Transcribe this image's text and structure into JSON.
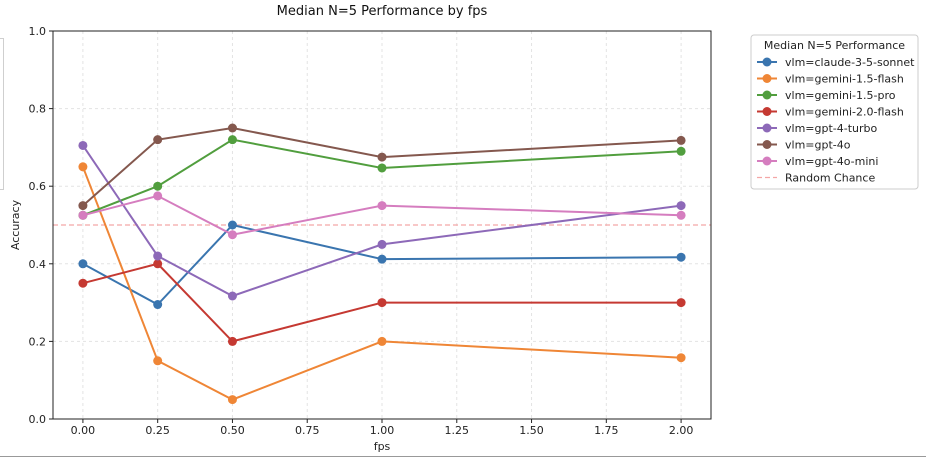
{
  "chart_data": {
    "type": "line",
    "title": "Median N=5 Performance by fps",
    "xlabel": "fps",
    "ylabel": "Accuracy",
    "xlim": [
      -0.1,
      2.1
    ],
    "ylim": [
      0.0,
      1.0
    ],
    "xticks": [
      0.0,
      0.25,
      0.5,
      0.75,
      1.0,
      1.25,
      1.5,
      1.75,
      2.0
    ],
    "xtick_labels": [
      "0.00",
      "0.25",
      "0.50",
      "0.75",
      "1.00",
      "1.25",
      "1.50",
      "1.75",
      "2.00"
    ],
    "yticks": [
      0.0,
      0.2,
      0.4,
      0.6,
      0.8,
      1.0
    ],
    "ytick_labels": [
      "0.0",
      "0.2",
      "0.4",
      "0.6",
      "0.8",
      "1.0"
    ],
    "grid": true,
    "legend_title": "Median N=5 Performance",
    "legend_position": "outside-top-right",
    "x": [
      0.0,
      0.25,
      0.5,
      1.0,
      2.0
    ],
    "series": [
      {
        "name": "vlm=claude-3-5-sonnet",
        "color": "#3a75af",
        "values": [
          0.4,
          0.295,
          0.5,
          0.412,
          0.417
        ]
      },
      {
        "name": "vlm=gemini-1.5-flash",
        "color": "#ef8636",
        "values": [
          0.65,
          0.15,
          0.05,
          0.2,
          0.158
        ]
      },
      {
        "name": "vlm=gemini-1.5-pro",
        "color": "#519e3e",
        "values": [
          0.525,
          0.6,
          0.72,
          0.647,
          0.69
        ]
      },
      {
        "name": "vlm=gemini-2.0-flash",
        "color": "#c53932",
        "values": [
          0.35,
          0.4,
          0.2,
          0.3,
          0.3
        ]
      },
      {
        "name": "vlm=gpt-4-turbo",
        "color": "#8d69b8",
        "values": [
          0.705,
          0.42,
          0.317,
          0.45,
          0.55
        ]
      },
      {
        "name": "vlm=gpt-4o",
        "color": "#84584e",
        "values": [
          0.55,
          0.72,
          0.75,
          0.675,
          0.718
        ]
      },
      {
        "name": "vlm=gpt-4o-mini",
        "color": "#d57dbf",
        "values": [
          0.525,
          0.575,
          0.475,
          0.55,
          0.525
        ]
      }
    ],
    "reference_line": {
      "name": "Random Chance",
      "y": 0.5,
      "color": "#f4a6a6",
      "style": "dashed"
    }
  }
}
